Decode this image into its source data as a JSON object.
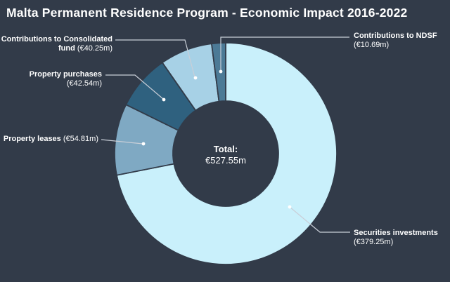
{
  "title": "Malta Permanent Residence Program - Economic Impact 2016-2022",
  "colors": {
    "background": "#323b49",
    "text": "#ffffff",
    "leader_line": "#c9cfd8",
    "leader_dot": "#ffffff"
  },
  "chart_data": {
    "type": "pie",
    "subtype": "donut",
    "title": "Malta Permanent Residence Program - Economic Impact 2016-2022",
    "total_label": "Total:",
    "total_value": "€527.55m",
    "total": 527.55,
    "unit": "€m",
    "legend_position": "none",
    "labels": "outside-with-leader-lines",
    "segments": [
      {
        "name": "Securities investments",
        "value": 379.25,
        "value_label": "(€379.25m)",
        "color": "#c9f0fb"
      },
      {
        "name": "Property leases",
        "value": 54.81,
        "value_label": "(€54.81m)",
        "color": "#7fa9c3"
      },
      {
        "name": "Property purchases",
        "value": 42.54,
        "value_label": "(€42.54m)",
        "color": "#2f617f"
      },
      {
        "name": "Contributions to Consolidated fund",
        "value": 40.25,
        "value_label": "(€40.25m)",
        "color": "#a7d1e6"
      },
      {
        "name": "Contributions to NDSF",
        "value": 10.69,
        "value_label": "(€10.69m)",
        "color": "#4c7a96"
      }
    ]
  }
}
